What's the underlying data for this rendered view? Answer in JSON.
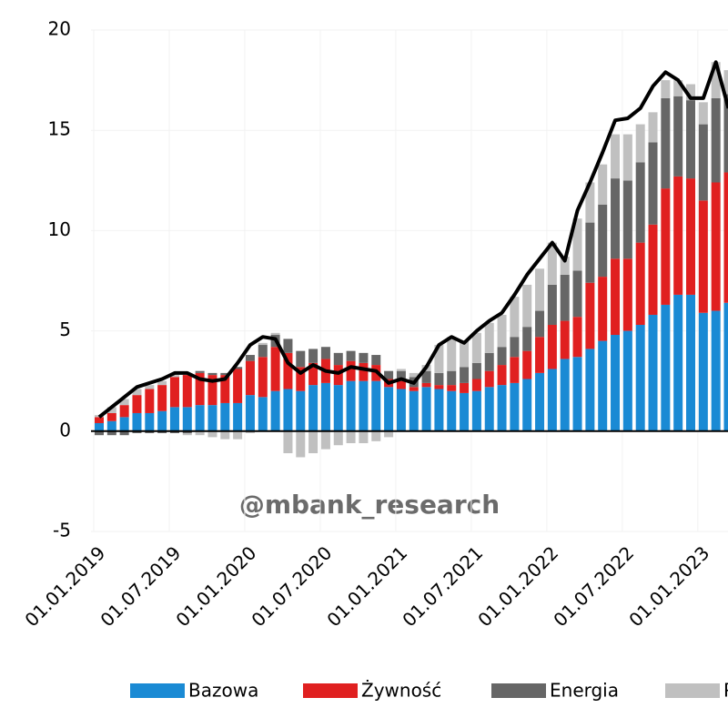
{
  "chart_data": {
    "type": "stacked-bar-line",
    "categories": [
      "01.01.2019",
      null,
      null,
      null,
      null,
      null,
      "01.07.2019",
      null,
      null,
      null,
      null,
      null,
      "01.01.2020",
      null,
      null,
      null,
      null,
      null,
      "01.07.2020",
      null,
      null,
      null,
      null,
      null,
      "01.01.2021",
      null,
      null,
      null,
      null,
      null,
      "01.07.2021",
      null,
      null,
      null,
      null,
      null,
      "01.01.2022",
      null,
      null,
      null,
      null,
      null,
      "01.07.2022",
      null,
      null,
      null,
      null,
      null,
      "01.01.2023",
      null,
      null
    ],
    "series": [
      {
        "name": "Bazowa",
        "color": "#1a8ad4",
        "values": [
          0.4,
          0.5,
          0.7,
          0.9,
          0.9,
          1.0,
          1.2,
          1.2,
          1.3,
          1.3,
          1.4,
          1.4,
          1.8,
          1.7,
          2.0,
          2.1,
          2.0,
          2.3,
          2.4,
          2.3,
          2.5,
          2.5,
          2.5,
          2.2,
          2.1,
          2.0,
          2.2,
          2.1,
          2.0,
          1.9,
          2.0,
          2.2,
          2.3,
          2.4,
          2.6,
          2.9,
          3.1,
          3.6,
          3.7,
          4.1,
          4.5,
          4.8,
          5.0,
          5.3,
          5.8,
          6.3,
          6.8,
          6.8,
          5.9,
          6.0,
          6.4
        ]
      },
      {
        "name": "Żywność",
        "color": "#e02020",
        "values": [
          0.3,
          0.4,
          0.6,
          0.9,
          1.2,
          1.3,
          1.5,
          1.6,
          1.6,
          1.5,
          1.4,
          1.7,
          1.7,
          2.0,
          2.2,
          1.8,
          1.2,
          1.1,
          1.2,
          1.0,
          1.0,
          0.9,
          0.8,
          0.4,
          0.4,
          0.2,
          0.2,
          0.2,
          0.3,
          0.5,
          0.6,
          0.8,
          1.0,
          1.3,
          1.4,
          1.8,
          2.2,
          1.9,
          2.0,
          3.3,
          3.2,
          3.8,
          3.6,
          4.1,
          4.5,
          5.8,
          5.9,
          5.8,
          5.6,
          6.4,
          6.5
        ]
      },
      {
        "name": "Energia",
        "color": "#666666",
        "values": [
          -0.2,
          -0.2,
          -0.2,
          -0.1,
          -0.1,
          -0.1,
          -0.1,
          -0.1,
          0.1,
          0.1,
          0.1,
          0.1,
          0.3,
          0.6,
          0.6,
          0.7,
          0.8,
          0.7,
          0.6,
          0.6,
          0.5,
          0.5,
          0.5,
          0.4,
          0.5,
          0.5,
          0.6,
          0.6,
          0.7,
          0.8,
          0.8,
          0.9,
          0.9,
          1.0,
          1.2,
          1.3,
          2.0,
          2.3,
          2.3,
          3.0,
          3.6,
          4.0,
          3.9,
          4.0,
          4.1,
          4.5,
          4.0,
          3.9,
          3.8,
          4.2,
          3.9
        ]
      },
      {
        "name": "P",
        "color": "#c0c0c0",
        "values": [
          0.1,
          0.3,
          0.3,
          0.3,
          0.2,
          0.2,
          0.1,
          -0.1,
          -0.2,
          -0.3,
          -0.4,
          -0.4,
          -0.1,
          0.1,
          0.1,
          -1.1,
          -1.3,
          -1.1,
          -0.9,
          -0.7,
          -0.6,
          -0.6,
          -0.5,
          -0.3,
          0.1,
          0.2,
          0.3,
          1.4,
          1.7,
          1.3,
          1.5,
          1.5,
          1.6,
          2.0,
          2.1,
          2.1,
          2.1,
          0.9,
          2.6,
          2.0,
          2.0,
          2.2,
          2.3,
          1.9,
          1.5,
          0.9,
          0.8,
          0.8,
          1.1,
          1.8,
          1.2
        ]
      }
    ],
    "line": {
      "color": "#000000",
      "values": [
        0.7,
        1.2,
        1.7,
        2.2,
        2.4,
        2.6,
        2.9,
        2.9,
        2.6,
        2.5,
        2.6,
        3.4,
        4.3,
        4.7,
        4.6,
        3.4,
        2.9,
        3.3,
        3.0,
        2.9,
        3.2,
        3.1,
        3.0,
        2.4,
        2.6,
        2.4,
        3.2,
        4.3,
        4.7,
        4.4,
        5.0,
        5.5,
        5.9,
        6.8,
        7.8,
        8.6,
        9.4,
        8.5,
        11.0,
        12.4,
        13.9,
        15.5,
        15.6,
        16.1,
        17.2,
        17.9,
        17.5,
        16.6,
        16.6,
        18.4,
        16.1
      ]
    },
    "ylim": [
      -5,
      20
    ],
    "yticks": [
      -5,
      0,
      5,
      10,
      15,
      20
    ],
    "grid": true,
    "annotation": "@mbank_research"
  }
}
